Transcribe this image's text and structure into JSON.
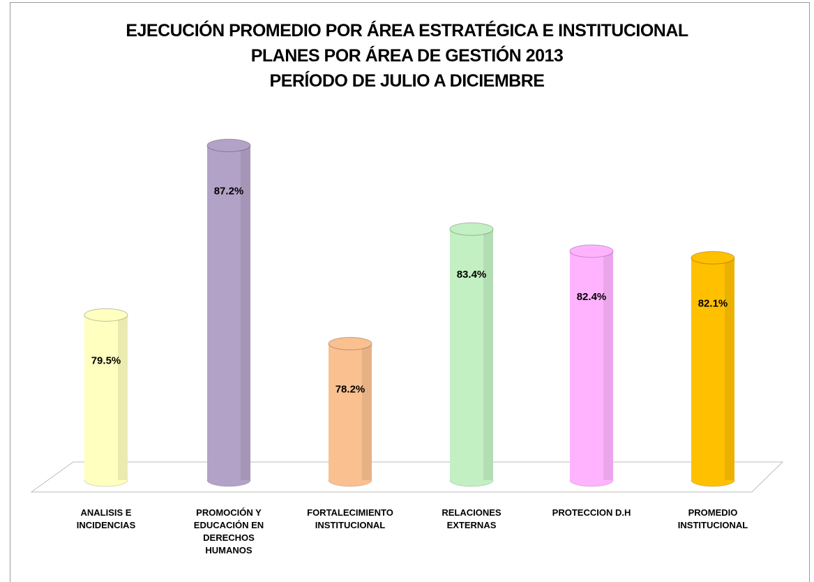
{
  "chart_data": {
    "type": "cylinder",
    "title": [
      "EJECUCIÓN PROMEDIO POR ÁREA ESTRATÉGICA E INSTITUCIONAL",
      "PLANES POR ÁREA DE GESTIÓN  2013",
      "PERÍODO DE JULIO A DICIEMBRE"
    ],
    "categories": [
      "ANALISIS E INCIDENCIAS",
      "PROMOCIÓN Y EDUCACIÓN EN DERECHOS HUMANOS",
      "FORTALECIMIENTO INSTITUCIONAL",
      "RELACIONES EXTERNAS",
      "PROTECCION D.H",
      "PROMEDIO INSTITUCIONAL"
    ],
    "values": [
      79.5,
      87.2,
      78.2,
      83.4,
      82.4,
      82.1
    ],
    "value_labels": [
      "79.5%",
      "87.2%",
      "78.2%",
      "83.4%",
      "82.4%",
      "82.1%"
    ],
    "colors": [
      "#ffffc0",
      "#b3a2c7",
      "#fac090",
      "#c3f0c3",
      "#ffb3ff",
      "#ffc000"
    ],
    "ylim": [
      72,
      90
    ]
  }
}
